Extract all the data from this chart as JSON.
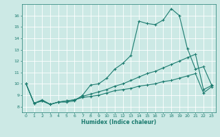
{
  "xlabel": "Humidex (Indice chaleur)",
  "background_color": "#cce9e5",
  "line_color": "#1a7a6e",
  "grid_color": "#ffffff",
  "xlim": [
    -0.5,
    23.5
  ],
  "ylim": [
    7.5,
    17.0
  ],
  "xticks": [
    0,
    1,
    2,
    3,
    4,
    5,
    6,
    7,
    8,
    9,
    10,
    11,
    12,
    13,
    14,
    15,
    16,
    17,
    18,
    19,
    20,
    21,
    22,
    23
  ],
  "yticks": [
    8,
    9,
    10,
    11,
    12,
    13,
    14,
    15,
    16
  ],
  "series": {
    "line1_x": [
      0,
      1,
      2,
      3,
      4,
      5,
      6,
      7,
      8,
      9,
      10,
      11,
      12,
      13,
      14,
      15,
      16,
      17,
      18,
      19,
      20,
      21,
      22,
      23
    ],
    "line1_y": [
      10.0,
      8.3,
      8.6,
      8.2,
      8.4,
      8.4,
      8.5,
      9.0,
      9.9,
      10.0,
      10.5,
      11.3,
      11.8,
      12.5,
      15.5,
      15.3,
      15.2,
      15.6,
      16.6,
      16.0,
      13.1,
      11.3,
      11.5,
      9.9
    ],
    "line2_x": [
      0,
      1,
      2,
      3,
      4,
      5,
      6,
      7,
      8,
      9,
      10,
      11,
      12,
      13,
      14,
      15,
      16,
      17,
      18,
      19,
      20,
      21,
      22,
      23
    ],
    "line2_y": [
      10.0,
      8.3,
      8.5,
      8.2,
      8.4,
      8.5,
      8.6,
      8.9,
      9.1,
      9.3,
      9.5,
      9.8,
      10.0,
      10.3,
      10.6,
      10.9,
      11.1,
      11.4,
      11.7,
      12.0,
      12.3,
      12.6,
      9.5,
      9.85
    ],
    "line3_x": [
      0,
      1,
      2,
      3,
      4,
      5,
      6,
      7,
      8,
      9,
      10,
      11,
      12,
      13,
      14,
      15,
      16,
      17,
      18,
      19,
      20,
      21,
      22,
      23
    ],
    "line3_y": [
      10.0,
      8.3,
      8.5,
      8.2,
      8.4,
      8.5,
      8.6,
      8.8,
      8.9,
      9.0,
      9.2,
      9.4,
      9.5,
      9.6,
      9.8,
      9.9,
      10.0,
      10.2,
      10.3,
      10.5,
      10.7,
      10.9,
      9.2,
      9.75
    ]
  }
}
